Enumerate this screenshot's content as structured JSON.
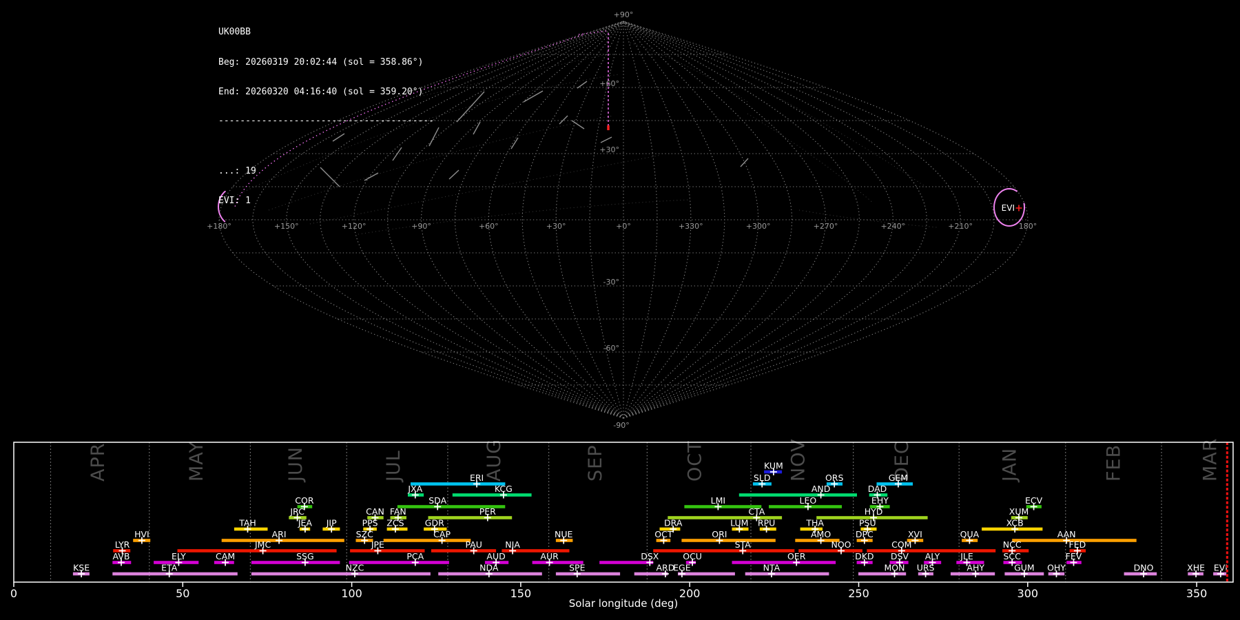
{
  "header": {
    "station": "UK00BB",
    "beg": "Beg: 20260319 20:02:44 (sol = 358.86°)",
    "end": "End: 20260320 04:16:40 (sol = 359.20°)",
    "separator": "----------------------------------------",
    "count_line_1": "...: 19",
    "count_line_2": "EVI: 1"
  },
  "map": {
    "pole_labels": {
      "top": "+90°",
      "bottom": "-90°"
    },
    "lat_labels": [
      {
        "text": "+60°",
        "deg": 60
      },
      {
        "text": "+30°",
        "deg": 30
      },
      {
        "text": "-30°",
        "deg": -30
      },
      {
        "text": "-60°",
        "deg": -60
      }
    ],
    "lon_labels": [
      "+180°",
      "+150°",
      "+120°",
      "+90°",
      "+60°",
      "+30°",
      "+0°",
      "+330°",
      "+300°",
      "+270°",
      "+240°",
      "+210°",
      "180°"
    ],
    "grid_step_deg": 15,
    "grid_color": "#8c8c8c",
    "highlight": {
      "code": "EVI",
      "circle_color": "#ee82ee",
      "track_color": "#ee6fee",
      "marker_color": "#ff2020"
    }
  },
  "chart_data": {
    "type": "timeline",
    "xlabel": "Solar longitude (deg)",
    "xlim": [
      0,
      361
    ],
    "xticks": [
      0,
      50,
      100,
      150,
      200,
      250,
      300,
      350
    ],
    "grid": "month-boundaries-dotted",
    "month_label_color": "#4c4c4c",
    "current_sol": [
      358.86,
      359.2
    ],
    "current_sol_color": "#ee1111",
    "months": [
      {
        "label": "APR",
        "start": 10.9,
        "mid": 24.7
      },
      {
        "label": "MAY",
        "start": 40.1,
        "mid": 53.8
      },
      {
        "label": "JUN",
        "start": 70.0,
        "mid": 83.2
      },
      {
        "label": "JUL",
        "start": 98.5,
        "mid": 112.1
      },
      {
        "label": "AUG",
        "start": 128.4,
        "mid": 141.9
      },
      {
        "label": "SEP",
        "start": 158.3,
        "mid": 171.8
      },
      {
        "label": "OCT",
        "start": 187.4,
        "mid": 201.3
      },
      {
        "label": "NOV",
        "start": 218.1,
        "mid": 231.9
      },
      {
        "label": "DEC",
        "start": 248.4,
        "mid": 262.5
      },
      {
        "label": "JAN",
        "start": 279.7,
        "mid": 294.4
      },
      {
        "label": "FEB",
        "start": 311.2,
        "mid": 325.2
      },
      {
        "label": "MAR",
        "start": 339.6,
        "mid": 353.8
      }
    ],
    "groups": [
      {
        "name": "blue",
        "color": "#1c1cdc",
        "row": 0,
        "showers": [
          {
            "code": "KUM",
            "start": 222.0,
            "end": 227.3,
            "peak": 224.8
          }
        ]
      },
      {
        "name": "cyan",
        "color": "#00c3f0",
        "row": 1,
        "showers": [
          {
            "code": "ERI",
            "start": 117.4,
            "end": 145.4,
            "peak": 137.0
          },
          {
            "code": "SLD",
            "start": 218.7,
            "end": 224.2,
            "peak": 221.4
          },
          {
            "code": "ORS",
            "start": 240.5,
            "end": 245.2,
            "peak": 242.8
          },
          {
            "code": "GEM",
            "start": 255.3,
            "end": 266.0,
            "peak": 261.7
          }
        ]
      },
      {
        "name": "spring-green",
        "color": "#00dd70",
        "row": 2,
        "showers": [
          {
            "code": "JXA",
            "start": 116.6,
            "end": 121.3,
            "peak": 118.8
          },
          {
            "code": "KCG",
            "start": 129.8,
            "end": 153.2,
            "peak": 144.9
          },
          {
            "code": "AND",
            "start": 214.6,
            "end": 249.5,
            "peak": 238.8
          },
          {
            "code": "DAD",
            "start": 253.1,
            "end": 258.5,
            "peak": 255.5
          }
        ]
      },
      {
        "name": "green",
        "color": "#35c410",
        "row": 3,
        "showers": [
          {
            "code": "COR",
            "start": 83.9,
            "end": 88.3,
            "peak": 86.0
          },
          {
            "code": "SDA",
            "start": 113.5,
            "end": 145.4,
            "peak": 125.4
          },
          {
            "code": "LMI",
            "start": 198.4,
            "end": 221.2,
            "peak": 208.4
          },
          {
            "code": "LEO",
            "start": 223.4,
            "end": 245.0,
            "peak": 235.0
          },
          {
            "code": "EHY",
            "start": 253.3,
            "end": 259.2,
            "peak": 256.3
          },
          {
            "code": "ECV",
            "start": 299.6,
            "end": 304.1,
            "peak": 301.8
          }
        ]
      },
      {
        "name": "yellow-green",
        "color": "#a0d41e",
        "row": 4,
        "showers": [
          {
            "code": "JRC",
            "start": 81.4,
            "end": 86.6,
            "peak": 83.9
          },
          {
            "code": "CAN",
            "start": 104.6,
            "end": 109.4,
            "peak": 106.9
          },
          {
            "code": "FAN",
            "start": 111.4,
            "end": 116.2,
            "peak": 113.7
          },
          {
            "code": "PER",
            "start": 122.6,
            "end": 147.4,
            "peak": 140.2
          },
          {
            "code": "CTA",
            "start": 193.5,
            "end": 227.3,
            "peak": 219.8
          },
          {
            "code": "HYD",
            "start": 237.5,
            "end": 270.4,
            "peak": 254.4
          },
          {
            "code": "XUM",
            "start": 295.1,
            "end": 300.0,
            "peak": 297.4
          }
        ]
      },
      {
        "name": "yellow",
        "color": "#ffd400",
        "row": 5,
        "showers": [
          {
            "code": "TAH",
            "start": 65.2,
            "end": 75.1,
            "peak": 69.2
          },
          {
            "code": "JEA",
            "start": 84.6,
            "end": 87.7,
            "peak": 86.2
          },
          {
            "code": "JIP",
            "start": 91.4,
            "end": 96.5,
            "peak": 94.0
          },
          {
            "code": "PPS",
            "start": 103.4,
            "end": 107.4,
            "peak": 105.4
          },
          {
            "code": "ZCS",
            "start": 110.4,
            "end": 116.5,
            "peak": 112.9
          },
          {
            "code": "GDR",
            "start": 121.3,
            "end": 128.1,
            "peak": 124.5
          },
          {
            "code": "DRA",
            "start": 191.1,
            "end": 197.2,
            "peak": 195.1
          },
          {
            "code": "LUM",
            "start": 212.5,
            "end": 217.4,
            "peak": 214.7
          },
          {
            "code": "RPU",
            "start": 220.7,
            "end": 225.6,
            "peak": 222.7
          },
          {
            "code": "THA",
            "start": 232.7,
            "end": 239.3,
            "peak": 237.1
          },
          {
            "code": "PSU",
            "start": 250.6,
            "end": 255.3,
            "peak": 252.6
          },
          {
            "code": "XCB",
            "start": 286.4,
            "end": 304.4,
            "peak": 296.2
          }
        ]
      },
      {
        "name": "orange",
        "color": "#ffa000",
        "row": 6,
        "showers": [
          {
            "code": "HVI",
            "start": 35.3,
            "end": 40.4,
            "peak": 37.9
          },
          {
            "code": "ARI",
            "start": 61.5,
            "end": 97.8,
            "peak": 78.5
          },
          {
            "code": "SZC",
            "start": 101.2,
            "end": 106.3,
            "peak": 103.8
          },
          {
            "code": "CAP",
            "start": 109.4,
            "end": 135.2,
            "peak": 126.7
          },
          {
            "code": "NUE",
            "start": 160.4,
            "end": 165.4,
            "peak": 162.7
          },
          {
            "code": "OCT",
            "start": 190.1,
            "end": 194.3,
            "peak": 192.3
          },
          {
            "code": "ORI",
            "start": 197.6,
            "end": 225.4,
            "peak": 208.8
          },
          {
            "code": "AMO",
            "start": 231.2,
            "end": 244.3,
            "peak": 238.8
          },
          {
            "code": "DPC",
            "start": 249.4,
            "end": 254.1,
            "peak": 251.7
          },
          {
            "code": "XVI",
            "start": 264.3,
            "end": 269.1,
            "peak": 266.7
          },
          {
            "code": "QUA",
            "start": 280.5,
            "end": 285.2,
            "peak": 282.8
          },
          {
            "code": "AAN",
            "start": 295.4,
            "end": 332.2,
            "peak": 311.5
          }
        ]
      },
      {
        "name": "red",
        "color": "#ee1600",
        "row": 7,
        "showers": [
          {
            "code": "LYR",
            "start": 29.4,
            "end": 34.5,
            "peak": 32.1
          },
          {
            "code": "JMC",
            "start": 48.4,
            "end": 95.5,
            "peak": 73.7
          },
          {
            "code": "JPE",
            "start": 99.5,
            "end": 121.6,
            "peak": 107.7
          },
          {
            "code": "PAU",
            "start": 123.5,
            "end": 142.7,
            "peak": 136.1
          },
          {
            "code": "NIA",
            "start": 144.4,
            "end": 164.4,
            "peak": 147.6
          },
          {
            "code": "STA",
            "start": 189.2,
            "end": 231.0,
            "peak": 215.7
          },
          {
            "code": "NOO",
            "start": 232.2,
            "end": 251.1,
            "peak": 244.8
          },
          {
            "code": "COM",
            "start": 252.4,
            "end": 290.5,
            "peak": 262.7
          },
          {
            "code": "NCC",
            "start": 292.5,
            "end": 300.3,
            "peak": 295.4
          },
          {
            "code": "FED",
            "start": 312.4,
            "end": 317.2,
            "peak": 314.7
          }
        ]
      },
      {
        "name": "magenta",
        "color": "#d400d4",
        "row": 8,
        "showers": [
          {
            "code": "AVB",
            "start": 29.2,
            "end": 34.7,
            "peak": 31.8
          },
          {
            "code": "ELY",
            "start": 41.4,
            "end": 54.7,
            "peak": 48.8
          },
          {
            "code": "CAM",
            "start": 59.3,
            "end": 65.2,
            "peak": 62.6
          },
          {
            "code": "SSG",
            "start": 70.3,
            "end": 96.5,
            "peak": 86.2
          },
          {
            "code": "PCA",
            "start": 99.2,
            "end": 128.8,
            "peak": 118.8
          },
          {
            "code": "AUD",
            "start": 139.4,
            "end": 146.4,
            "peak": 142.7
          },
          {
            "code": "AUR",
            "start": 153.4,
            "end": 168.5,
            "peak": 158.5
          },
          {
            "code": "DSX",
            "start": 173.3,
            "end": 189.2,
            "peak": 188.2
          },
          {
            "code": "OCU",
            "start": 198.9,
            "end": 201.8,
            "peak": 200.8
          },
          {
            "code": "OER",
            "start": 212.5,
            "end": 243.2,
            "peak": 231.6
          },
          {
            "code": "DKD",
            "start": 249.4,
            "end": 254.1,
            "peak": 251.7
          },
          {
            "code": "DSV",
            "start": 259.2,
            "end": 264.7,
            "peak": 262.1
          },
          {
            "code": "ALY",
            "start": 269.3,
            "end": 274.4,
            "peak": 271.8
          },
          {
            "code": "JLE",
            "start": 278.9,
            "end": 287.1,
            "peak": 282.0
          },
          {
            "code": "SCC",
            "start": 292.8,
            "end": 298.3,
            "peak": 295.4
          },
          {
            "code": "FEV",
            "start": 311.5,
            "end": 315.9,
            "peak": 313.6
          }
        ]
      },
      {
        "name": "violet",
        "color": "#dc82dc",
        "row": 9,
        "showers": [
          {
            "code": "KSE",
            "start": 17.5,
            "end": 22.4,
            "peak": 20.0
          },
          {
            "code": "ETA",
            "start": 29.2,
            "end": 66.2,
            "peak": 46.0
          },
          {
            "code": "NZC",
            "start": 70.3,
            "end": 123.3,
            "peak": 100.9
          },
          {
            "code": "NDA",
            "start": 125.6,
            "end": 156.3,
            "peak": 140.6
          },
          {
            "code": "SPE",
            "start": 160.4,
            "end": 179.4,
            "peak": 166.7
          },
          {
            "code": "ARD",
            "start": 183.6,
            "end": 193.5,
            "peak": 192.8
          },
          {
            "code": "EGE",
            "start": 196.5,
            "end": 213.4,
            "peak": 197.7
          },
          {
            "code": "NTA",
            "start": 216.4,
            "end": 241.2,
            "peak": 224.2
          },
          {
            "code": "MON",
            "start": 249.9,
            "end": 264.0,
            "peak": 260.6
          },
          {
            "code": "URS",
            "start": 267.6,
            "end": 272.1,
            "peak": 269.8
          },
          {
            "code": "AHY",
            "start": 277.2,
            "end": 290.3,
            "peak": 284.6
          },
          {
            "code": "GUM",
            "start": 293.2,
            "end": 304.8,
            "peak": 299.0
          },
          {
            "code": "OHY",
            "start": 306.1,
            "end": 310.9,
            "peak": 308.5
          },
          {
            "code": "DNO",
            "start": 328.5,
            "end": 338.2,
            "peak": 334.3
          },
          {
            "code": "XHE",
            "start": 347.4,
            "end": 352.0,
            "peak": 349.8
          },
          {
            "code": "EVI",
            "start": 354.9,
            "end": 358.8,
            "peak": 357.1
          }
        ]
      }
    ]
  }
}
